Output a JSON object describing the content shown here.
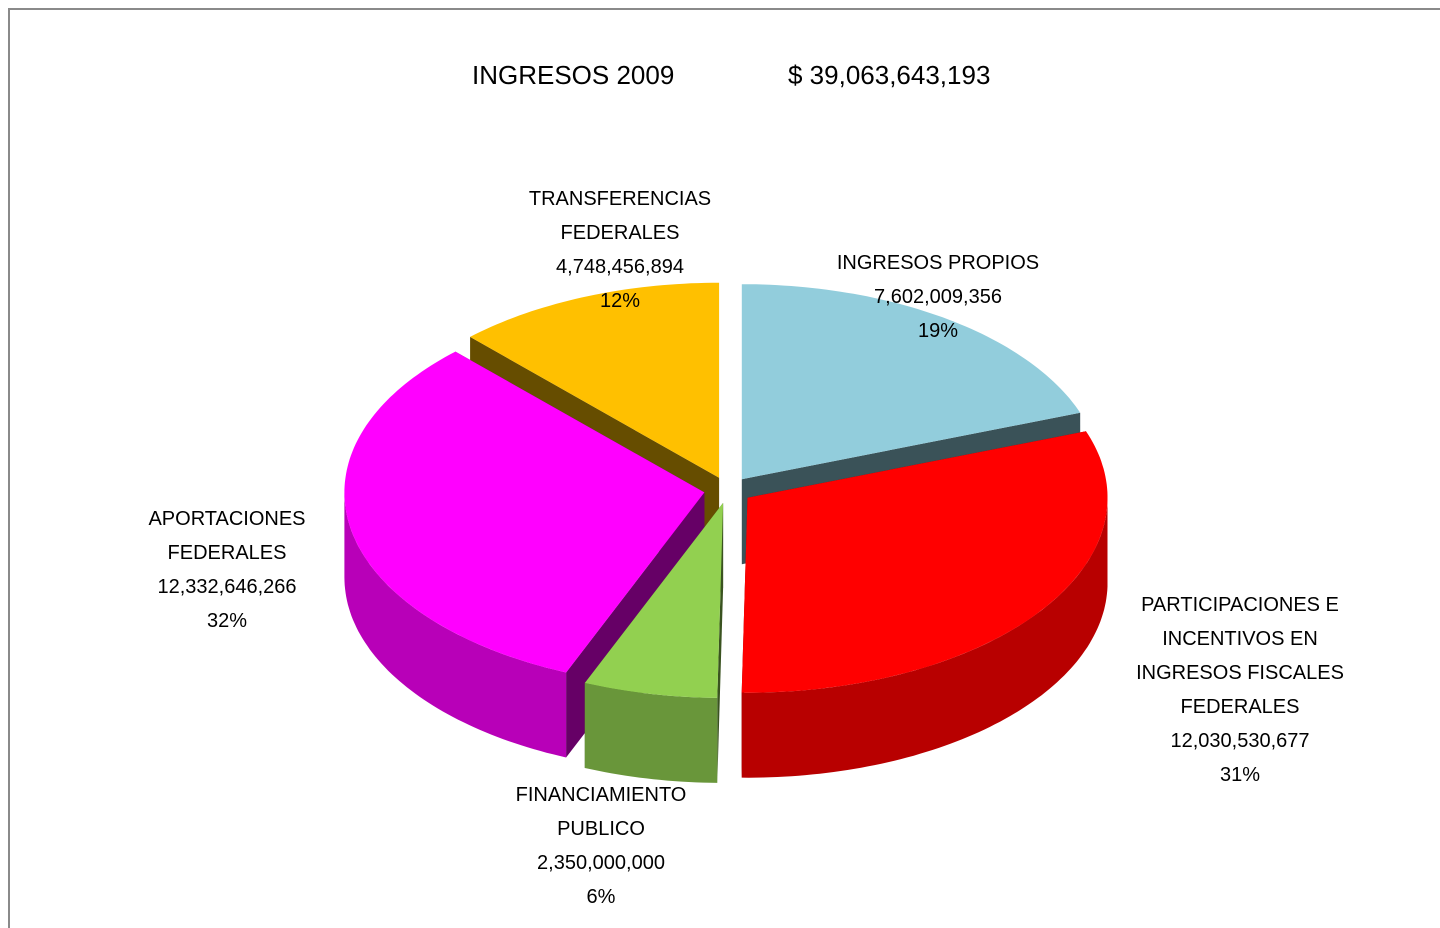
{
  "chart_data": {
    "type": "pie3d",
    "title": "INGRESOS  2009",
    "subtitle": "$ 39,063,643,193",
    "categories": [
      "INGRESOS PROPIOS",
      "PARTICIPACIONES E INCENTIVOS EN INGRESOS FISCALES FEDERALES",
      "FINANCIAMIENTO PUBLICO",
      "APORTACIONES FEDERALES",
      "TRANSFERENCIAS FEDERALES"
    ],
    "values": [
      7602009356,
      12030530677,
      2350000000,
      12332646266,
      4748456894
    ],
    "value_labels": [
      "7,602,009,356",
      "12,030,530,677",
      "2,350,000,000",
      "12,332,646,266",
      "4,748,456,894"
    ],
    "percent_labels": [
      "19%",
      "31%",
      "6%",
      "32%",
      "12%"
    ],
    "colors": [
      "#92CDDC",
      "#FF0000",
      "#92D050",
      "#FF00FF",
      "#FFC000"
    ]
  }
}
